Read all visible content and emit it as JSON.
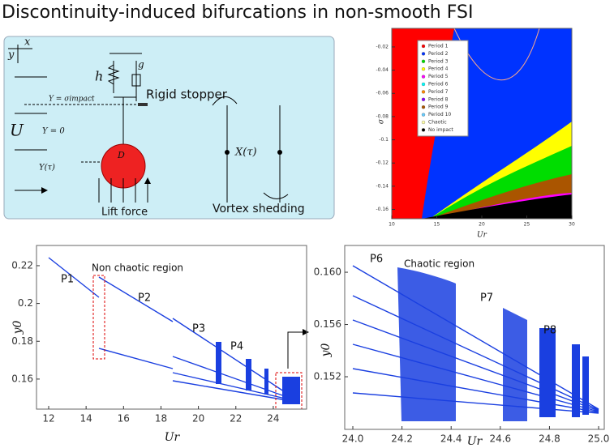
{
  "title": "Discontinuity-induced bifurcations in non-smooth FSI",
  "schematic": {
    "x": "x",
    "y": "y",
    "h": "h",
    "g": "g",
    "stopper": "Rigid stopper",
    "impact": "Y = σimpact",
    "U": "U",
    "zero": "Y = 0",
    "Y": "Y(τ)",
    "D": "D",
    "lift": "Lift force",
    "X": "X(τ)",
    "vortex": "Vortex shedding"
  },
  "map": {
    "xlim": [
      10,
      30
    ],
    "ylim": [
      -0.168,
      -0.004
    ],
    "xticks": [
      10,
      15,
      20,
      25,
      30
    ],
    "yticks": [
      -0.02,
      -0.04,
      -0.06,
      -0.08,
      -0.1,
      -0.12,
      -0.14,
      -0.16
    ],
    "xlabel": "Ur",
    "ylabel": "σ",
    "legend": [
      {
        "name": "Period 1",
        "color": "#ff0000"
      },
      {
        "name": "Period 2",
        "color": "#0033ff"
      },
      {
        "name": "Period 3",
        "color": "#00dd00"
      },
      {
        "name": "Period 4",
        "color": "#ffff00"
      },
      {
        "name": "Period 5",
        "color": "#ff00ff"
      },
      {
        "name": "Period 6",
        "color": "#00ffff"
      },
      {
        "name": "Period 7",
        "color": "#ff8800"
      },
      {
        "name": "Period 8",
        "color": "#8800ff"
      },
      {
        "name": "Period 9",
        "color": "#aa5500"
      },
      {
        "name": "Period 10",
        "color": "#66ccff"
      },
      {
        "name": "Chaotic",
        "color": "#ffffaa"
      },
      {
        "name": "No impact",
        "color": "#000000"
      }
    ]
  },
  "left": {
    "xlim": [
      11.35,
      25.78
    ],
    "ylim": [
      0.1441,
      0.2307
    ],
    "xticks": [
      12,
      14,
      16,
      18,
      20,
      22,
      24
    ],
    "yticks": [
      0.16,
      0.18,
      0.2,
      0.22
    ],
    "xlabel": "Ur",
    "ylabel": "y0",
    "annotations": [
      "P1",
      "P2",
      "P3",
      "P4",
      "Non chaotic region"
    ]
  },
  "right": {
    "xlim": [
      23.967,
      25.023
    ],
    "ylim": [
      0.14797,
      0.16205
    ],
    "xticks": [
      {
        "value": 24,
        "label": "24.0"
      },
      24.2,
      24.4,
      24.6,
      24.8,
      {
        "value": 25,
        "label": "25.0"
      }
    ],
    "yticks": [
      {
        "value": 0.152,
        "label": "0.152"
      },
      {
        "value": 0.156,
        "label": "0.156"
      },
      {
        "value": 0.16,
        "label": "0.160"
      }
    ],
    "xlabel": "Ur",
    "ylabel": "y0",
    "annotations": [
      "P6",
      "Chaotic region",
      "P7",
      "P8"
    ]
  }
}
